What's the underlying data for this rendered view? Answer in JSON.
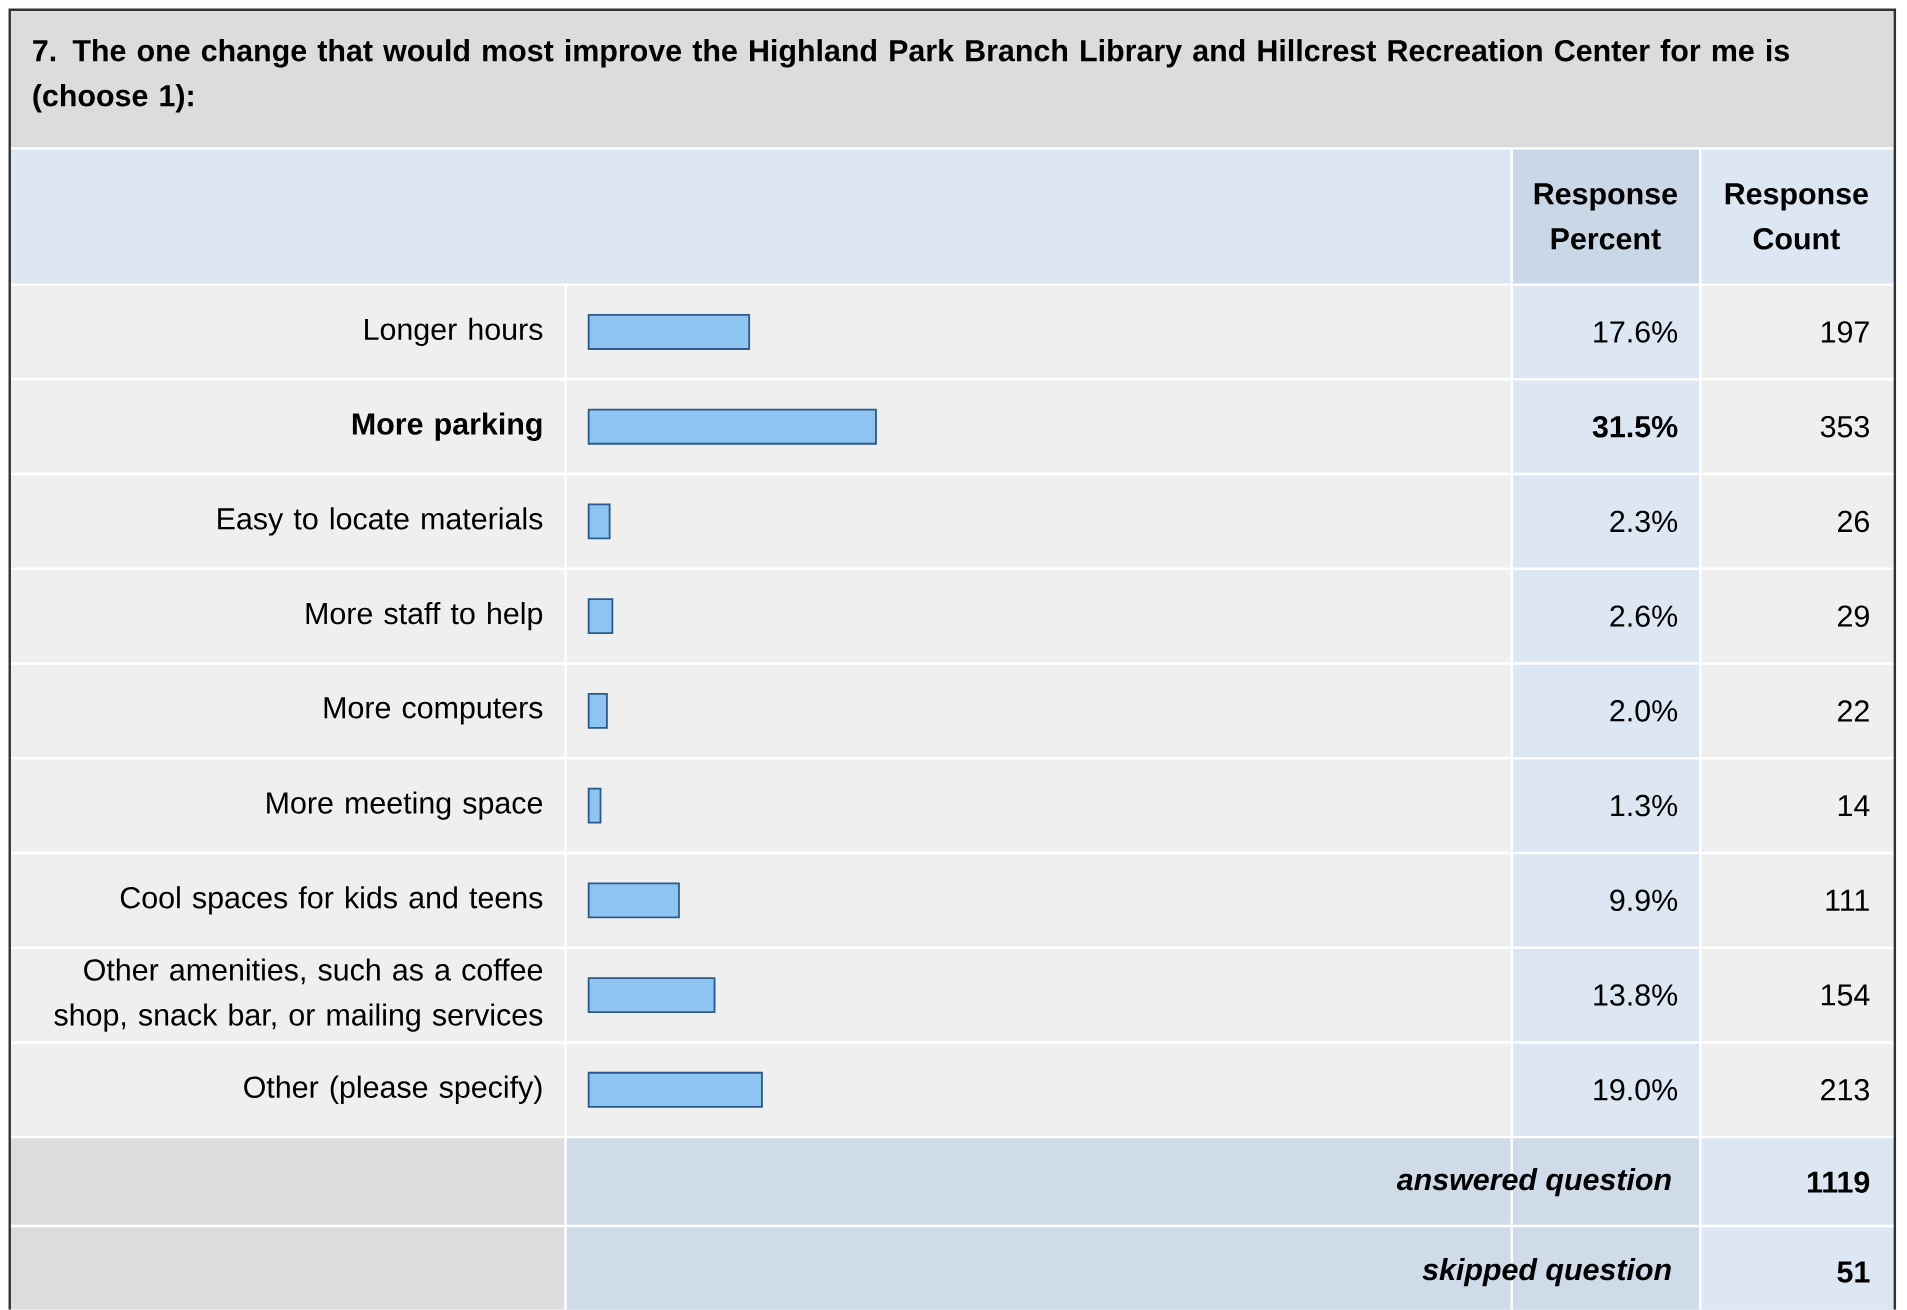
{
  "chart_data": {
    "type": "bar",
    "orientation": "horizontal",
    "title": "7. The one change that would most improve the Highland Park Branch Library and Hillcrest Recreation Center for me is (choose 1):",
    "categories": [
      "Longer hours",
      "More parking",
      "Easy to locate materials",
      "More staff to help",
      "More computers",
      "More meeting space",
      "Cool spaces for kids and teens",
      "Other amenities, such as a coffee shop, snack bar, or mailing services",
      "Other (please specify)"
    ],
    "values": [
      17.6,
      31.5,
      2.3,
      2.6,
      2.0,
      1.3,
      9.9,
      13.8,
      19.0
    ],
    "value_labels": [
      "17.6%",
      "31.5%",
      "2.3%",
      "2.6%",
      "2.0%",
      "1.3%",
      "9.9%",
      "13.8%",
      "19.0%"
    ],
    "data_labels": true,
    "color": "#8ec4f2",
    "tick_labels": false,
    "annotations": [
      "Response Percent",
      "Response Count",
      "197",
      "353",
      "26",
      "29",
      "22",
      "14",
      "111",
      "154",
      "213",
      "answered question",
      "1119",
      "skipped question",
      "51"
    ]
  }
}
